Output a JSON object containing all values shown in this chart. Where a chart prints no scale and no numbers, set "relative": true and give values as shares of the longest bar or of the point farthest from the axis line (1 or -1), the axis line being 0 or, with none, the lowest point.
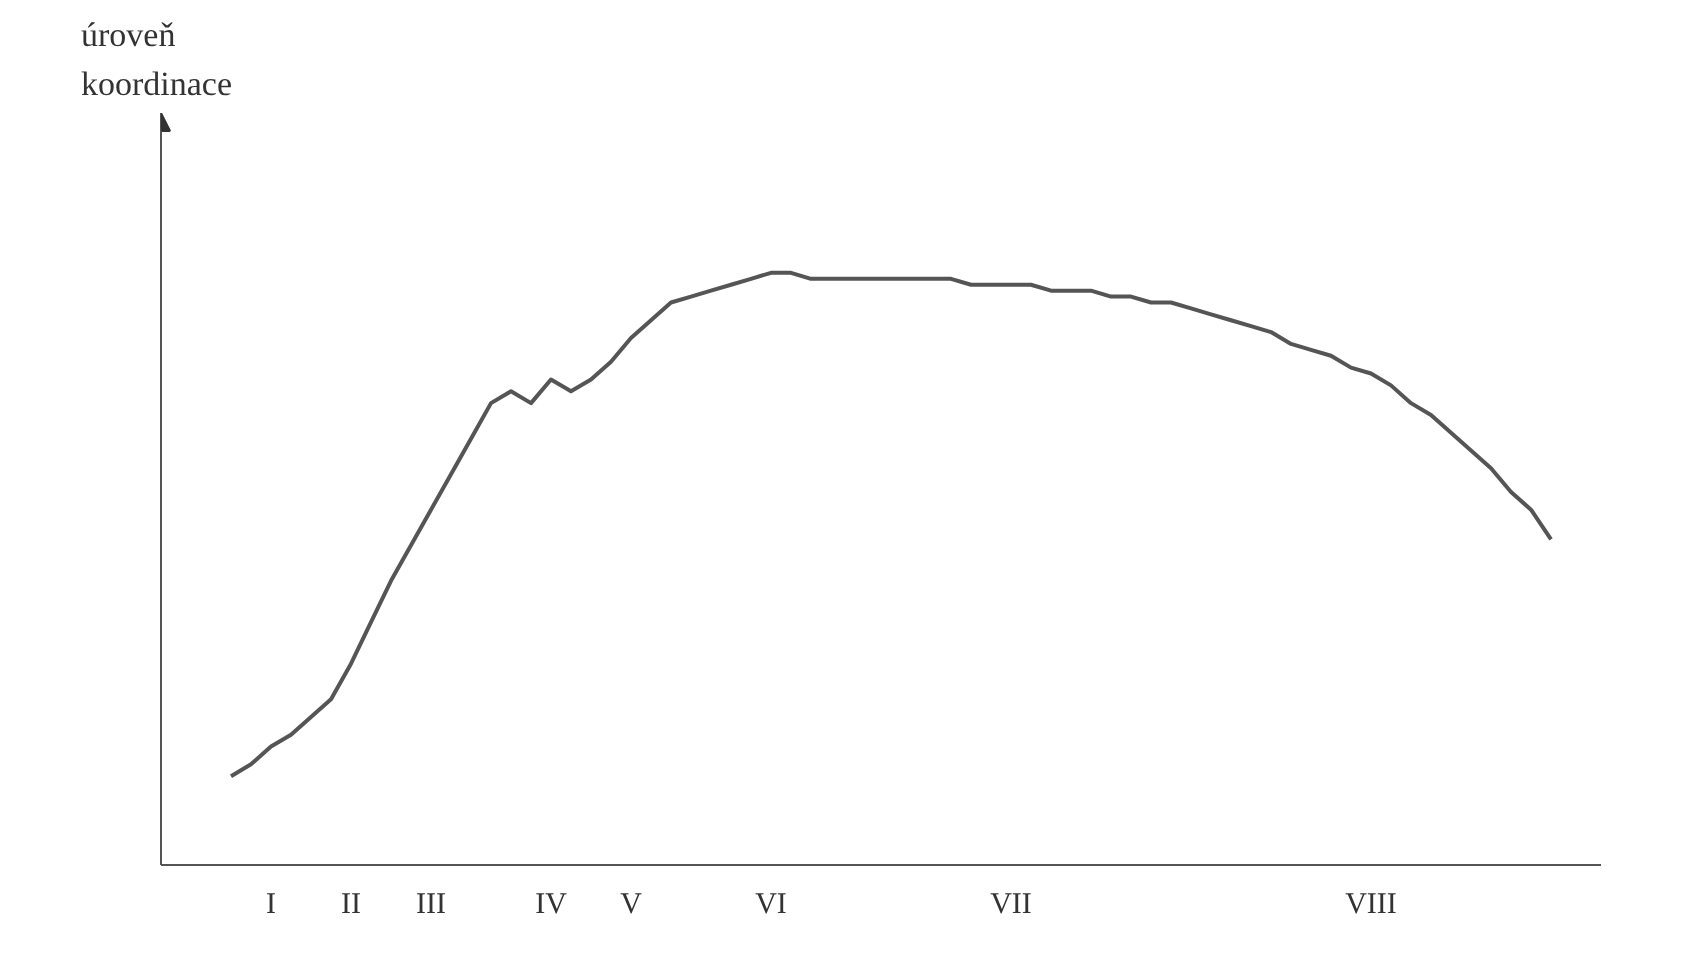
{
  "chart_data": {
    "type": "line",
    "ylabel": "úroveň\nkoordinace",
    "relative": true,
    "color": "#555555",
    "categories": [
      null,
      null,
      "I",
      null,
      null,
      null,
      "II",
      null,
      null,
      null,
      "III",
      null,
      null,
      null,
      null,
      null,
      "IV",
      null,
      null,
      null,
      "V",
      null,
      null,
      null,
      null,
      null,
      null,
      "VI",
      null,
      null,
      null,
      null,
      null,
      null,
      null,
      null,
      null,
      null,
      null,
      "VII",
      null,
      null,
      null,
      null,
      null,
      null,
      null,
      null,
      null,
      null,
      null,
      null,
      null,
      null,
      null,
      null,
      null,
      "VIII",
      null,
      null,
      null,
      null,
      null,
      null,
      null,
      null,
      null
    ],
    "values": [
      0.15,
      0.17,
      0.2,
      0.22,
      0.25,
      0.28,
      0.34,
      0.41,
      0.48,
      0.54,
      0.6,
      0.66,
      0.72,
      0.78,
      0.8,
      0.78,
      0.82,
      0.8,
      0.82,
      0.85,
      0.89,
      0.92,
      0.95,
      0.96,
      0.97,
      0.98,
      0.99,
      1,
      1,
      0.99,
      0.99,
      0.99,
      0.99,
      0.99,
      0.99,
      0.99,
      0.99,
      0.98,
      0.98,
      0.98,
      0.98,
      0.97,
      0.97,
      0.97,
      0.96,
      0.96,
      0.95,
      0.95,
      0.94,
      0.93,
      0.92,
      0.91,
      0.9,
      0.88,
      0.87,
      0.86,
      0.84,
      0.83,
      0.81,
      0.78,
      0.76,
      0.73,
      0.7,
      0.67,
      0.63,
      0.6,
      0.55
    ],
    "grid": false,
    "marker": "none",
    "line_style": "solid"
  }
}
